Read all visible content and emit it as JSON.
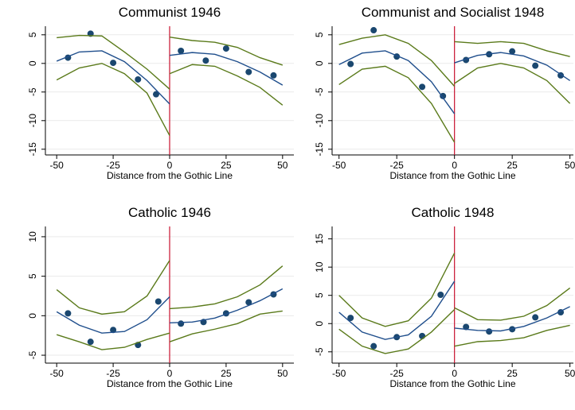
{
  "chart_data": [
    {
      "type": "scatter",
      "title": "Communist 1946",
      "x_label": "Distance from the Gothic Line",
      "xlim": [
        -55,
        55
      ],
      "xticks": [
        -50,
        -25,
        0,
        25,
        50
      ],
      "ylim": [
        -16,
        6.5
      ],
      "yticks": [
        5,
        0,
        -5,
        -10,
        -15
      ],
      "grid": true,
      "cutoff": 0,
      "cutoff_color": "#c8102e",
      "series": [
        {
          "style": "points",
          "color": "#1a476f",
          "x": [
            -45,
            -35,
            -25,
            -14,
            -6,
            5,
            16,
            25,
            35,
            46
          ],
          "values": [
            1,
            5.2,
            0.1,
            -2.8,
            -5.4,
            2.2,
            0.5,
            2.6,
            -1.5,
            -2.1
          ]
        },
        {
          "style": "line",
          "color": "#1f4e8c",
          "x": [
            -50,
            -40,
            -30,
            -20,
            -10,
            0
          ],
          "values": [
            0.4,
            2,
            2.2,
            0.3,
            -3,
            -7.1
          ]
        },
        {
          "style": "line",
          "color": "#5a7a1a",
          "x": [
            -50,
            -40,
            -30,
            -20,
            -10,
            0
          ],
          "values": [
            4.5,
            4.9,
            4.8,
            2,
            -1,
            -4.5
          ]
        },
        {
          "style": "line",
          "color": "#5a7a1a",
          "x": [
            -50,
            -40,
            -30,
            -20,
            -10,
            0
          ],
          "values": [
            -2.9,
            -0.8,
            0,
            -1.8,
            -5.2,
            -12.6
          ]
        },
        {
          "style": "line",
          "color": "#1f4e8c",
          "x": [
            0,
            10,
            20,
            30,
            40,
            50
          ],
          "values": [
            1.4,
            1.9,
            1.6,
            0.3,
            -1.5,
            -3.8
          ]
        },
        {
          "style": "line",
          "color": "#5a7a1a",
          "x": [
            0,
            10,
            20,
            30,
            40,
            50
          ],
          "values": [
            4.6,
            4,
            3.7,
            2.8,
            1,
            -0.3
          ]
        },
        {
          "style": "line",
          "color": "#5a7a1a",
          "x": [
            0,
            10,
            20,
            30,
            40,
            50
          ],
          "values": [
            -1.8,
            -0.2,
            -0.5,
            -2.2,
            -4.2,
            -7.3
          ]
        }
      ]
    },
    {
      "type": "scatter",
      "title": "Communist and Socialist 1948",
      "x_label": "Distance from the Gothic Line",
      "xlim": [
        -53,
        51.5
      ],
      "xticks": [
        -50,
        -25,
        0,
        25,
        50
      ],
      "ylim": [
        -16,
        6.5
      ],
      "yticks": [
        5,
        0,
        -5,
        -10,
        -15
      ],
      "grid": true,
      "cutoff": 0,
      "cutoff_color": "#c8102e",
      "series": [
        {
          "style": "points",
          "color": "#1a476f",
          "x": [
            -45,
            -35,
            -25,
            -14,
            -5,
            5,
            15,
            25,
            35,
            46
          ],
          "values": [
            -0.1,
            5.8,
            1.2,
            -4.1,
            -5.7,
            0.6,
            1.6,
            2.1,
            -0.4,
            -2.1
          ]
        },
        {
          "style": "line",
          "color": "#1f4e8c",
          "x": [
            -50,
            -40,
            -30,
            -20,
            -10,
            0
          ],
          "values": [
            -0.2,
            1.8,
            2.2,
            0.5,
            -3.2,
            -8.8
          ]
        },
        {
          "style": "line",
          "color": "#5a7a1a",
          "x": [
            -50,
            -40,
            -30,
            -20,
            -10,
            0
          ],
          "values": [
            3.3,
            4.4,
            5,
            3.5,
            0.5,
            -4
          ]
        },
        {
          "style": "line",
          "color": "#5a7a1a",
          "x": [
            -50,
            -40,
            -30,
            -20,
            -10,
            0
          ],
          "values": [
            -3.7,
            -1,
            -0.5,
            -2.5,
            -7,
            -13.8
          ]
        },
        {
          "style": "line",
          "color": "#1f4e8c",
          "x": [
            0,
            10,
            20,
            30,
            40,
            50
          ],
          "values": [
            0.1,
            1.4,
            1.9,
            1.3,
            -0.3,
            -3
          ]
        },
        {
          "style": "line",
          "color": "#5a7a1a",
          "x": [
            0,
            10,
            20,
            30,
            40,
            50
          ],
          "values": [
            3.8,
            3.5,
            3.8,
            3.5,
            2.2,
            1.2
          ]
        },
        {
          "style": "line",
          "color": "#5a7a1a",
          "x": [
            0,
            10,
            20,
            30,
            40,
            50
          ],
          "values": [
            -3.5,
            -0.8,
            0,
            -0.8,
            -3,
            -7
          ]
        }
      ]
    },
    {
      "type": "scatter",
      "title": "Catholic 1946",
      "x_label": "Distance from the Gothic Line",
      "xlim": [
        -55,
        55
      ],
      "xticks": [
        -50,
        -25,
        0,
        25,
        50
      ],
      "ylim": [
        -6,
        11.3
      ],
      "yticks": [
        10,
        5,
        0,
        -5
      ],
      "grid": true,
      "cutoff": 0,
      "cutoff_color": "#c8102e",
      "series": [
        {
          "style": "points",
          "color": "#1a476f",
          "x": [
            -45,
            -35,
            -25,
            -14,
            -5,
            5,
            15,
            25,
            35,
            46
          ],
          "values": [
            0.3,
            -3.3,
            -1.8,
            -3.7,
            1.8,
            -1,
            -0.8,
            0.3,
            1.7,
            2.7
          ]
        },
        {
          "style": "line",
          "color": "#1f4e8c",
          "x": [
            -50,
            -40,
            -30,
            -20,
            -10,
            0
          ],
          "values": [
            0.5,
            -1.2,
            -2.2,
            -2,
            -0.5,
            2.4
          ]
        },
        {
          "style": "line",
          "color": "#5a7a1a",
          "x": [
            -50,
            -40,
            -30,
            -20,
            -10,
            0
          ],
          "values": [
            3.3,
            1,
            0.2,
            0.5,
            2.5,
            7
          ]
        },
        {
          "style": "line",
          "color": "#5a7a1a",
          "x": [
            -50,
            -40,
            -30,
            -20,
            -10,
            0
          ],
          "values": [
            -2.4,
            -3.3,
            -4.3,
            -4,
            -3,
            -2.2
          ]
        },
        {
          "style": "line",
          "color": "#1f4e8c",
          "x": [
            0,
            10,
            20,
            30,
            40,
            50
          ],
          "values": [
            -0.9,
            -0.8,
            -0.3,
            0.7,
            1.9,
            3.4
          ]
        },
        {
          "style": "line",
          "color": "#5a7a1a",
          "x": [
            0,
            10,
            20,
            30,
            40,
            50
          ],
          "values": [
            0.9,
            1.1,
            1.5,
            2.4,
            3.9,
            6.3
          ]
        },
        {
          "style": "line",
          "color": "#5a7a1a",
          "x": [
            0,
            10,
            20,
            30,
            40,
            50
          ],
          "values": [
            -3.3,
            -2.3,
            -1.7,
            -1,
            0.2,
            0.6
          ]
        }
      ]
    },
    {
      "type": "scatter",
      "title": "Catholic 1948",
      "x_label": "Distance from the Gothic Line",
      "xlim": [
        -53,
        51.5
      ],
      "xticks": [
        -50,
        -25,
        0,
        25,
        50
      ],
      "ylim": [
        -7,
        17.2
      ],
      "yticks": [
        15,
        10,
        5,
        0,
        -5
      ],
      "grid": true,
      "cutoff": 0,
      "cutoff_color": "#c8102e",
      "series": [
        {
          "style": "points",
          "color": "#1a476f",
          "x": [
            -45,
            -35,
            -25,
            -14,
            -6,
            5,
            15,
            25,
            35,
            46
          ],
          "values": [
            1,
            -4,
            -2.4,
            -2.2,
            5.1,
            -0.6,
            -1.4,
            -1,
            1.1,
            2
          ]
        },
        {
          "style": "line",
          "color": "#1f4e8c",
          "x": [
            -50,
            -40,
            -30,
            -20,
            -10,
            0
          ],
          "values": [
            2,
            -1.5,
            -2.8,
            -2,
            1.3,
            7.5
          ]
        },
        {
          "style": "line",
          "color": "#5a7a1a",
          "x": [
            -50,
            -40,
            -30,
            -20,
            -10,
            0
          ],
          "values": [
            5,
            1,
            -0.5,
            0.5,
            4.5,
            12.5
          ]
        },
        {
          "style": "line",
          "color": "#5a7a1a",
          "x": [
            -50,
            -40,
            -30,
            -20,
            -10,
            0
          ],
          "values": [
            -1,
            -4,
            -5.3,
            -4.5,
            -1.5,
            2.5
          ]
        },
        {
          "style": "line",
          "color": "#1f4e8c",
          "x": [
            0,
            10,
            20,
            30,
            40,
            50
          ],
          "values": [
            -0.8,
            -1.2,
            -1.3,
            -0.5,
            1,
            3
          ]
        },
        {
          "style": "line",
          "color": "#5a7a1a",
          "x": [
            0,
            10,
            20,
            30,
            40,
            50
          ],
          "values": [
            2.8,
            0.7,
            0.6,
            1.3,
            3.2,
            6.3
          ]
        },
        {
          "style": "line",
          "color": "#5a7a1a",
          "x": [
            0,
            10,
            20,
            30,
            40,
            50
          ],
          "values": [
            -4,
            -3.2,
            -3,
            -2.5,
            -1.2,
            -0.3
          ]
        }
      ]
    }
  ]
}
